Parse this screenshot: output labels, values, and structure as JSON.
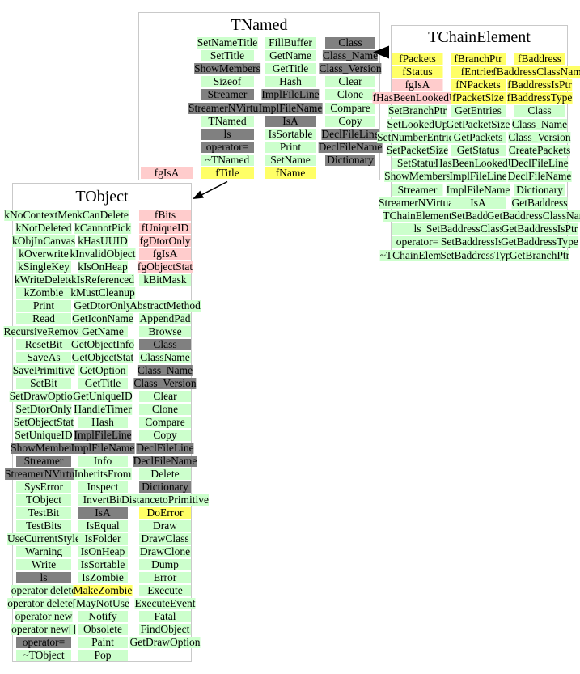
{
  "diagram": {
    "background": "#ffffff",
    "kind_colors": {
      "method": "#ccffcc",
      "data": "#ffff66",
      "static": "#ffcccc",
      "gray": "#808080"
    },
    "box_border_color": "#c9c9c9",
    "arrow_color": "#000000",
    "relations": [
      {
        "from": "TNamed",
        "to": "TObject",
        "type": "inherits-from"
      },
      {
        "from": "TChainElement",
        "to": "TNamed",
        "type": "inherits-from"
      }
    ],
    "classes": [
      {
        "id": "TNamed",
        "title": "TNamed",
        "rows": [
          [
            null,
            [
              "SetNameTitle",
              "method"
            ],
            [
              "FillBuffer",
              "method"
            ],
            [
              "Class",
              "gray"
            ]
          ],
          [
            null,
            [
              "SetTitle",
              "method"
            ],
            [
              "GetName",
              "method"
            ],
            [
              "Class_Name",
              "gray"
            ]
          ],
          [
            null,
            [
              "ShowMembers",
              "gray"
            ],
            [
              "GetTitle",
              "method"
            ],
            [
              "Class_Version",
              "gray"
            ]
          ],
          [
            null,
            [
              "Sizeof",
              "method"
            ],
            [
              "Hash",
              "method"
            ],
            [
              "Clear",
              "method"
            ]
          ],
          [
            null,
            [
              "Streamer",
              "gray"
            ],
            [
              "ImplFileLine",
              "gray"
            ],
            [
              "Clone",
              "method"
            ]
          ],
          [
            null,
            [
              "StreamerNVirtual",
              "gray"
            ],
            [
              "ImplFileName",
              "gray"
            ],
            [
              "Compare",
              "method"
            ]
          ],
          [
            null,
            [
              "TNamed",
              "method"
            ],
            [
              "IsA",
              "gray"
            ],
            [
              "Copy",
              "method"
            ]
          ],
          [
            null,
            [
              "ls",
              "gray"
            ],
            [
              "IsSortable",
              "method"
            ],
            [
              "DeclFileLine",
              "gray"
            ]
          ],
          [
            null,
            [
              "operator=",
              "gray"
            ],
            [
              "Print",
              "method"
            ],
            [
              "DeclFileName",
              "gray"
            ]
          ],
          [
            null,
            [
              "~TNamed",
              "method"
            ],
            [
              "SetName",
              "method"
            ],
            [
              "Dictionary",
              "gray"
            ]
          ],
          [
            [
              "fgIsA",
              "static"
            ],
            [
              "fTitle",
              "data"
            ],
            [
              "fName",
              "data"
            ],
            null
          ]
        ]
      },
      {
        "id": "TChainElement",
        "title": "TChainElement",
        "rows": [
          [
            [
              "fPackets",
              "data"
            ],
            [
              "fBranchPtr",
              "data"
            ],
            [
              "fBaddress",
              "data"
            ]
          ],
          [
            [
              "fStatus",
              "data"
            ],
            [
              "fEntries",
              "data"
            ],
            [
              "fBaddressClassName",
              "data"
            ]
          ],
          [
            [
              "fgIsA",
              "static"
            ],
            [
              "fNPackets",
              "data"
            ],
            [
              "fBaddressIsPtr",
              "data"
            ]
          ],
          [
            [
              "fHasBeenLookedUp",
              "static"
            ],
            [
              "fPacketSize",
              "data"
            ],
            [
              "fBaddressType",
              "data"
            ]
          ],
          [
            [
              "SetBranchPtr",
              "method"
            ],
            [
              "GetEntries",
              "method"
            ],
            [
              "Class",
              "method"
            ]
          ],
          [
            [
              "SetLookedUp",
              "method"
            ],
            [
              "GetPacketSize",
              "method"
            ],
            [
              "Class_Name",
              "method"
            ]
          ],
          [
            [
              "SetNumberEntries",
              "method"
            ],
            [
              "GetPackets",
              "method"
            ],
            [
              "Class_Version",
              "method"
            ]
          ],
          [
            [
              "SetPacketSize",
              "method"
            ],
            [
              "GetStatus",
              "method"
            ],
            [
              "CreatePackets",
              "method"
            ]
          ],
          [
            [
              "SetStatus",
              "method"
            ],
            [
              "HasBeenLookedUp",
              "method"
            ],
            [
              "DeclFileLine",
              "method"
            ]
          ],
          [
            [
              "ShowMembers",
              "method"
            ],
            [
              "ImplFileLine",
              "method"
            ],
            [
              "DeclFileName",
              "method"
            ]
          ],
          [
            [
              "Streamer",
              "method"
            ],
            [
              "ImplFileName",
              "method"
            ],
            [
              "Dictionary",
              "method"
            ]
          ],
          [
            [
              "StreamerNVirtual",
              "method"
            ],
            [
              "IsA",
              "method"
            ],
            [
              "GetBaddress",
              "method"
            ]
          ],
          [
            [
              "TChainElement",
              "method"
            ],
            [
              "SetBaddress",
              "method"
            ],
            [
              "GetBaddressClassName",
              "method"
            ]
          ],
          [
            [
              "ls",
              "method"
            ],
            [
              "SetBaddressClassName",
              "method"
            ],
            [
              "GetBaddressIsPtr",
              "method"
            ]
          ],
          [
            [
              "operator=",
              "method"
            ],
            [
              "SetBaddressIsPtr",
              "method"
            ],
            [
              "GetBaddressType",
              "method"
            ]
          ],
          [
            [
              "~TChainElement",
              "method"
            ],
            [
              "SetBaddressType",
              "method"
            ],
            [
              "GetBranchPtr",
              "method"
            ]
          ]
        ]
      },
      {
        "id": "TObject",
        "title": "TObject",
        "rows": [
          [
            [
              "kNoContextMenu",
              "method"
            ],
            [
              "kCanDelete",
              "method"
            ],
            [
              "fBits",
              "static"
            ]
          ],
          [
            [
              "kNotDeleted",
              "method"
            ],
            [
              "kCannotPick",
              "method"
            ],
            [
              "fUniqueID",
              "static"
            ]
          ],
          [
            [
              "kObjInCanvas",
              "method"
            ],
            [
              "kHasUUID",
              "method"
            ],
            [
              "fgDtorOnly",
              "static"
            ]
          ],
          [
            [
              "kOverwrite",
              "method"
            ],
            [
              "kInvalidObject",
              "method"
            ],
            [
              "fgIsA",
              "static"
            ]
          ],
          [
            [
              "kSingleKey",
              "method"
            ],
            [
              "kIsOnHeap",
              "method"
            ],
            [
              "fgObjectStat",
              "static"
            ]
          ],
          [
            [
              "kWriteDelete",
              "method"
            ],
            [
              "kIsReferenced",
              "method"
            ],
            [
              "kBitMask",
              "method"
            ]
          ],
          [
            [
              "kZombie",
              "method"
            ],
            [
              "kMustCleanup",
              "method"
            ],
            null
          ],
          [
            [
              "Print",
              "method"
            ],
            [
              "GetDtorOnly",
              "method"
            ],
            [
              "AbstractMethod",
              "method"
            ]
          ],
          [
            [
              "Read",
              "method"
            ],
            [
              "GetIconName",
              "method"
            ],
            [
              "AppendPad",
              "method"
            ]
          ],
          [
            [
              "RecursiveRemove",
              "method"
            ],
            [
              "GetName",
              "method"
            ],
            [
              "Browse",
              "method"
            ]
          ],
          [
            [
              "ResetBit",
              "method"
            ],
            [
              "GetObjectInfo",
              "method"
            ],
            [
              "Class",
              "gray"
            ]
          ],
          [
            [
              "SaveAs",
              "method"
            ],
            [
              "GetObjectStat",
              "method"
            ],
            [
              "ClassName",
              "method"
            ]
          ],
          [
            [
              "SavePrimitive",
              "method"
            ],
            [
              "GetOption",
              "method"
            ],
            [
              "Class_Name",
              "gray"
            ]
          ],
          [
            [
              "SetBit",
              "method"
            ],
            [
              "GetTitle",
              "method"
            ],
            [
              "Class_Version",
              "gray"
            ]
          ],
          [
            [
              "SetDrawOption",
              "method"
            ],
            [
              "GetUniqueID",
              "method"
            ],
            [
              "Clear",
              "method"
            ]
          ],
          [
            [
              "SetDtorOnly",
              "method"
            ],
            [
              "HandleTimer",
              "method"
            ],
            [
              "Clone",
              "method"
            ]
          ],
          [
            [
              "SetObjectStat",
              "method"
            ],
            [
              "Hash",
              "method"
            ],
            [
              "Compare",
              "method"
            ]
          ],
          [
            [
              "SetUniqueID",
              "method"
            ],
            [
              "ImplFileLine",
              "gray"
            ],
            [
              "Copy",
              "method"
            ]
          ],
          [
            [
              "ShowMembers",
              "gray"
            ],
            [
              "ImplFileName",
              "gray"
            ],
            [
              "DeclFileLine",
              "gray"
            ]
          ],
          [
            [
              "Streamer",
              "gray"
            ],
            [
              "Info",
              "method"
            ],
            [
              "DeclFileName",
              "gray"
            ]
          ],
          [
            [
              "StreamerNVirtual",
              "gray"
            ],
            [
              "InheritsFrom",
              "method"
            ],
            [
              "Delete",
              "method"
            ]
          ],
          [
            [
              "SysError",
              "method"
            ],
            [
              "Inspect",
              "method"
            ],
            [
              "Dictionary",
              "gray"
            ]
          ],
          [
            [
              "TObject",
              "method"
            ],
            [
              "InvertBit",
              "method"
            ],
            [
              "DistancetoPrimitive",
              "method"
            ]
          ],
          [
            [
              "TestBit",
              "method"
            ],
            [
              "IsA",
              "gray"
            ],
            [
              "DoError",
              "data"
            ]
          ],
          [
            [
              "TestBits",
              "method"
            ],
            [
              "IsEqual",
              "method"
            ],
            [
              "Draw",
              "method"
            ]
          ],
          [
            [
              "UseCurrentStyle",
              "method"
            ],
            [
              "IsFolder",
              "method"
            ],
            [
              "DrawClass",
              "method"
            ]
          ],
          [
            [
              "Warning",
              "method"
            ],
            [
              "IsOnHeap",
              "method"
            ],
            [
              "DrawClone",
              "method"
            ]
          ],
          [
            [
              "Write",
              "method"
            ],
            [
              "IsSortable",
              "method"
            ],
            [
              "Dump",
              "method"
            ]
          ],
          [
            [
              "ls",
              "gray"
            ],
            [
              "IsZombie",
              "method"
            ],
            [
              "Error",
              "method"
            ]
          ],
          [
            [
              "operator delete",
              "method"
            ],
            [
              "MakeZombie",
              "data"
            ],
            [
              "Execute",
              "method"
            ]
          ],
          [
            [
              "operator delete[]",
              "method"
            ],
            [
              "MayNotUse",
              "method"
            ],
            [
              "ExecuteEvent",
              "method"
            ]
          ],
          [
            [
              "operator new",
              "method"
            ],
            [
              "Notify",
              "method"
            ],
            [
              "Fatal",
              "method"
            ]
          ],
          [
            [
              "operator new[]",
              "method"
            ],
            [
              "Obsolete",
              "method"
            ],
            [
              "FindObject",
              "method"
            ]
          ],
          [
            [
              "operator=",
              "gray"
            ],
            [
              "Paint",
              "method"
            ],
            [
              "GetDrawOption",
              "method"
            ]
          ],
          [
            [
              "~TObject",
              "method"
            ],
            [
              "Pop",
              "method"
            ],
            null
          ]
        ]
      }
    ]
  }
}
